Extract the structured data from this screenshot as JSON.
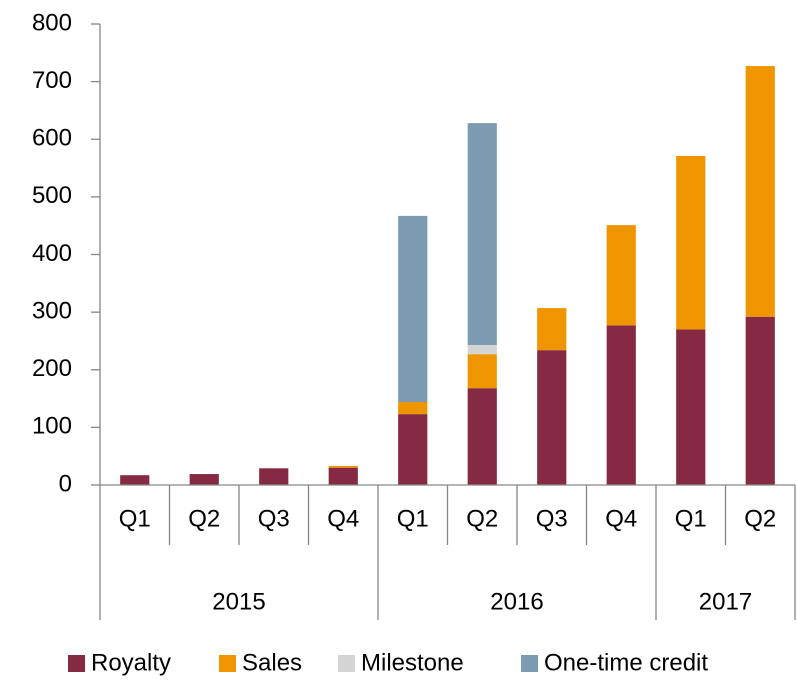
{
  "chart_data": {
    "type": "stacked_bar",
    "groups": [
      {
        "name": "2015",
        "categories": [
          "Q1",
          "Q2",
          "Q3",
          "Q4"
        ]
      },
      {
        "name": "2016",
        "categories": [
          "Q1",
          "Q2",
          "Q3",
          "Q4"
        ]
      },
      {
        "name": "2017",
        "categories": [
          "Q1",
          "Q2"
        ]
      }
    ],
    "series": [
      {
        "name": "Royalty",
        "color": "#862a43",
        "values": [
          17,
          19,
          29,
          30,
          123,
          168,
          234,
          277,
          270,
          292
        ]
      },
      {
        "name": "Sales",
        "color": "#ee9500",
        "values": [
          0,
          0,
          0,
          3,
          21,
          59,
          73,
          174,
          301,
          435
        ]
      },
      {
        "name": "Milestone",
        "color": "#d4d4d4",
        "values": [
          0,
          0,
          0,
          0,
          0,
          16,
          0,
          0,
          0,
          0
        ]
      },
      {
        "name": "One-time credit",
        "color": "#7c9bb0",
        "values": [
          0,
          0,
          0,
          0,
          323,
          385,
          0,
          0,
          0,
          0
        ]
      }
    ],
    "ylim": [
      0,
      800
    ],
    "yticks": [
      0,
      100,
      200,
      300,
      400,
      500,
      600,
      700,
      800
    ],
    "legend": "bottom"
  }
}
